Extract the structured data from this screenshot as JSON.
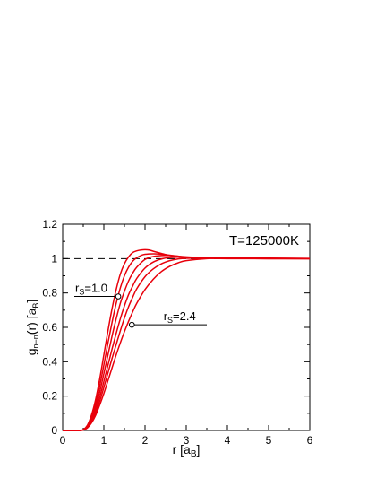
{
  "chart_data": {
    "type": "line",
    "xlabel": {
      "main": "r [a",
      "sub": "B",
      "close": "]"
    },
    "ylabel": {
      "main": "g",
      "sub": "n−n",
      "mid": "(r) [a",
      "sub2": "B",
      "close": "]"
    },
    "xlim": [
      0,
      6
    ],
    "ylim": [
      0,
      1.2
    ],
    "xticks": [
      0,
      1,
      2,
      3,
      4,
      5,
      6
    ],
    "yticks": [
      0,
      0.2,
      0.4,
      0.6,
      0.8,
      1,
      1.2
    ],
    "xtick_labels": [
      "0",
      "1",
      "2",
      "3",
      "4",
      "5",
      "6"
    ],
    "ytick_labels": [
      "0",
      "0.2",
      "0.4",
      "0.6",
      "0.8",
      "1",
      "1.2"
    ],
    "grid": false,
    "reference_line": {
      "y": 1.0,
      "style": "dashed",
      "color": "#000000"
    },
    "annotations": [
      {
        "text_main": "r",
        "text_sub": "S",
        "text_rest": "=1.0",
        "point": [
          1.35,
          0.78
        ]
      },
      {
        "text_main": "r",
        "text_sub": "S",
        "text_rest": "=2.4",
        "point": [
          1.68,
          0.615
        ]
      }
    ],
    "temperature_label": "T=125000K",
    "series_color": "#e8000b",
    "series": [
      {
        "x": [
          0,
          0.4,
          0.5,
          0.6,
          0.7,
          0.8,
          0.9,
          1.0,
          1.1,
          1.2,
          1.3,
          1.4,
          1.5,
          1.6,
          1.7,
          1.8,
          1.9,
          2.0,
          2.1,
          2.2,
          2.4,
          2.6,
          2.8,
          3.0,
          3.5,
          4.0,
          5.0,
          6.0
        ],
        "y": [
          0,
          0,
          0.005,
          0.03,
          0.09,
          0.18,
          0.3,
          0.44,
          0.58,
          0.71,
          0.82,
          0.91,
          0.97,
          1.01,
          1.035,
          1.045,
          1.05,
          1.052,
          1.05,
          1.043,
          1.03,
          1.018,
          1.01,
          1.005,
          1.002,
          1.0,
          1.0,
          1.0
        ]
      },
      {
        "x": [
          0,
          0.4,
          0.5,
          0.6,
          0.7,
          0.8,
          0.9,
          1.0,
          1.1,
          1.2,
          1.3,
          1.4,
          1.5,
          1.6,
          1.7,
          1.8,
          1.9,
          2.0,
          2.2,
          2.4,
          2.6,
          2.8,
          3.0,
          3.5,
          4.0,
          5.0,
          6.0
        ],
        "y": [
          0,
          0,
          0.004,
          0.025,
          0.075,
          0.155,
          0.26,
          0.38,
          0.51,
          0.63,
          0.74,
          0.83,
          0.9,
          0.95,
          0.985,
          1.005,
          1.018,
          1.025,
          1.028,
          1.026,
          1.02,
          1.014,
          1.008,
          1.003,
          1.001,
          1.0,
          1.0
        ]
      },
      {
        "x": [
          0,
          0.4,
          0.5,
          0.6,
          0.7,
          0.8,
          0.9,
          1.0,
          1.1,
          1.2,
          1.3,
          1.4,
          1.5,
          1.6,
          1.7,
          1.8,
          2.0,
          2.2,
          2.4,
          2.6,
          2.8,
          3.0,
          3.5,
          4.0,
          5.0,
          6.0
        ],
        "y": [
          0,
          0,
          0.004,
          0.022,
          0.065,
          0.135,
          0.225,
          0.33,
          0.44,
          0.55,
          0.65,
          0.74,
          0.81,
          0.87,
          0.915,
          0.95,
          0.995,
          1.012,
          1.018,
          1.018,
          1.014,
          1.01,
          1.004,
          1.001,
          1.0,
          1.0
        ]
      },
      {
        "x": [
          0,
          0.4,
          0.5,
          0.6,
          0.7,
          0.8,
          0.9,
          1.0,
          1.1,
          1.2,
          1.3,
          1.4,
          1.5,
          1.6,
          1.7,
          1.8,
          2.0,
          2.2,
          2.4,
          2.6,
          2.8,
          3.0,
          3.5,
          4.0,
          5.0,
          6.0
        ],
        "y": [
          0,
          0,
          0.003,
          0.02,
          0.056,
          0.115,
          0.195,
          0.285,
          0.38,
          0.475,
          0.565,
          0.65,
          0.725,
          0.79,
          0.84,
          0.885,
          0.945,
          0.98,
          0.998,
          1.006,
          1.008,
          1.007,
          1.004,
          1.002,
          1.001,
          1.0
        ]
      },
      {
        "x": [
          0,
          0.4,
          0.5,
          0.6,
          0.7,
          0.8,
          0.9,
          1.0,
          1.1,
          1.2,
          1.3,
          1.4,
          1.5,
          1.6,
          1.7,
          1.8,
          2.0,
          2.2,
          2.4,
          2.6,
          2.8,
          3.0,
          3.5,
          4.0,
          5.0,
          6.0
        ],
        "y": [
          0,
          0,
          0.003,
          0.018,
          0.05,
          0.1,
          0.17,
          0.25,
          0.335,
          0.42,
          0.5,
          0.58,
          0.655,
          0.72,
          0.775,
          0.825,
          0.895,
          0.94,
          0.97,
          0.988,
          0.998,
          1.002,
          1.003,
          1.002,
          1.001,
          1.0
        ]
      },
      {
        "x": [
          0,
          0.4,
          0.5,
          0.6,
          0.7,
          0.8,
          0.9,
          1.0,
          1.1,
          1.2,
          1.3,
          1.4,
          1.5,
          1.6,
          1.7,
          1.8,
          2.0,
          2.2,
          2.4,
          2.6,
          2.8,
          3.0,
          3.5,
          4.0,
          4.5,
          5.0,
          6.0
        ],
        "y": [
          0,
          0,
          0.002,
          0.015,
          0.044,
          0.088,
          0.148,
          0.215,
          0.29,
          0.365,
          0.44,
          0.51,
          0.575,
          0.635,
          0.69,
          0.74,
          0.82,
          0.88,
          0.925,
          0.955,
          0.975,
          0.988,
          1.0,
          1.004,
          1.004,
          1.003,
          1.001
        ]
      }
    ]
  }
}
